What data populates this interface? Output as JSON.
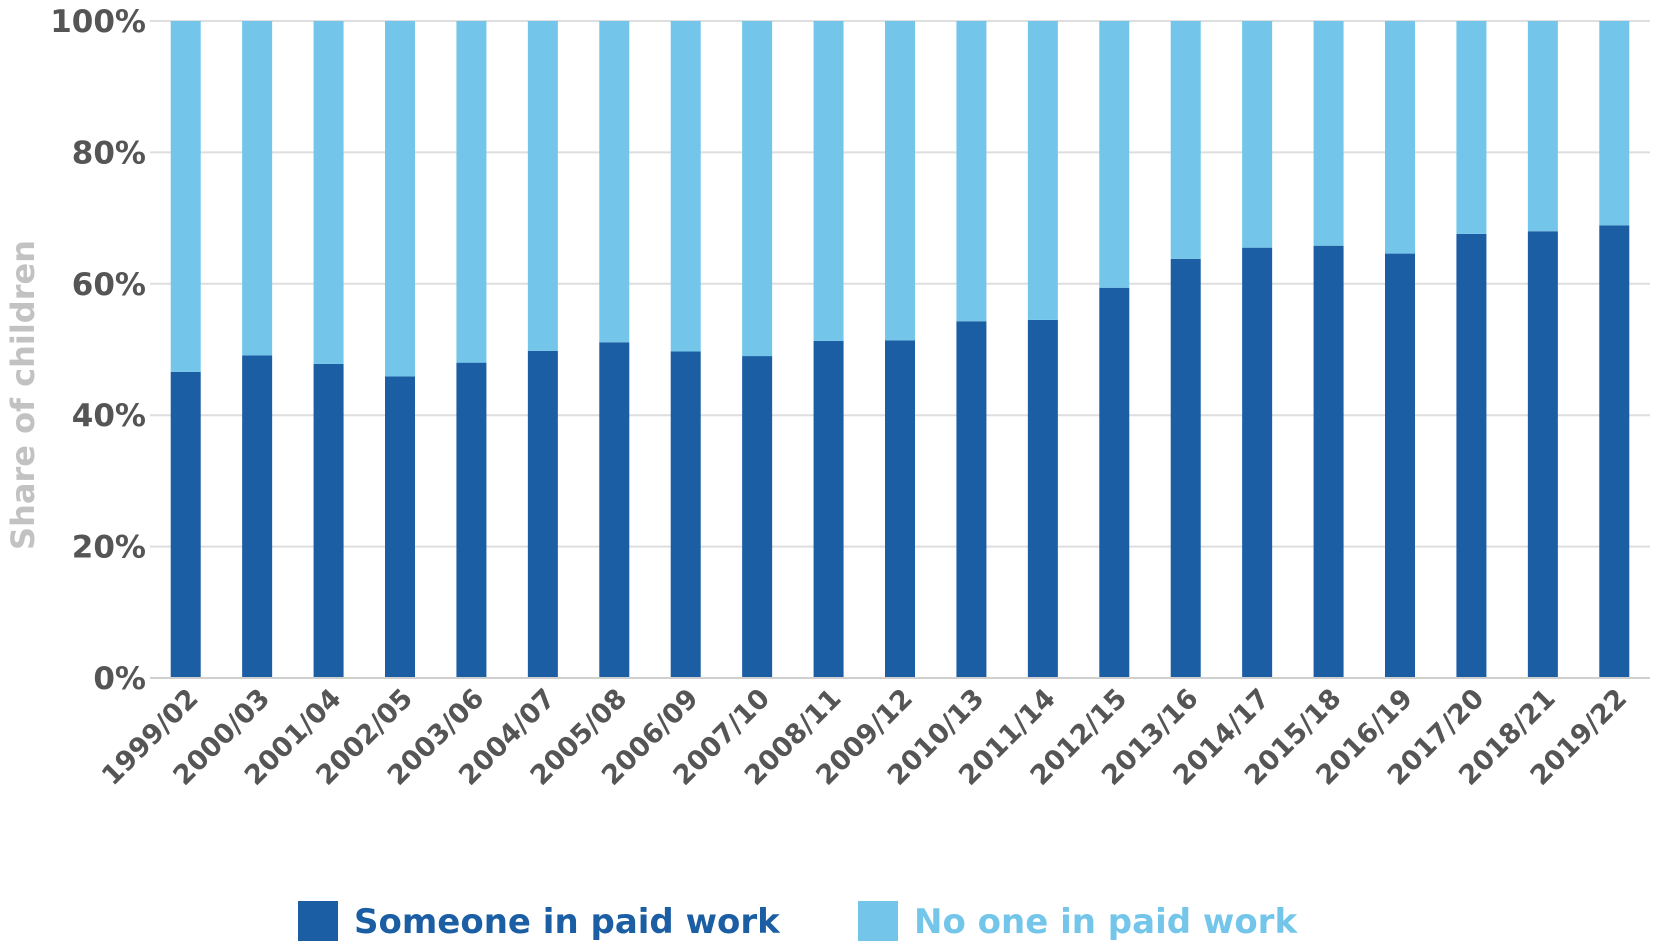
{
  "chart_data": {
    "type": "bar",
    "stacked": true,
    "title": "",
    "xlabel": "",
    "ylabel": "Share of children",
    "ylim": [
      0,
      100
    ],
    "yticks": [
      "0%",
      "20%",
      "40%",
      "60%",
      "80%",
      "100%"
    ],
    "grid": true,
    "legend_position": "bottom",
    "categories": [
      "1999/02",
      "2000/03",
      "2001/04",
      "2002/05",
      "2003/06",
      "2004/07",
      "2005/08",
      "2006/09",
      "2007/10",
      "2008/11",
      "2009/12",
      "2010/13",
      "2011/14",
      "2012/15",
      "2013/16",
      "2014/17",
      "2015/18",
      "2016/19",
      "2017/20",
      "2018/21",
      "2019/22"
    ],
    "series": [
      {
        "name": "Someone in paid work",
        "color": "#1b5ea3",
        "values": [
          46.6,
          49.1,
          47.8,
          45.9,
          48.0,
          49.8,
          51.1,
          49.7,
          49.0,
          51.3,
          51.4,
          54.3,
          54.5,
          59.4,
          63.8,
          65.5,
          65.8,
          64.6,
          67.6,
          68.0,
          68.9
        ]
      },
      {
        "name": "No one in paid work",
        "color": "#73c6ea",
        "values": [
          53.4,
          50.9,
          52.2,
          54.1,
          52.0,
          50.2,
          48.9,
          50.3,
          51.0,
          48.7,
          48.6,
          45.7,
          45.5,
          40.6,
          36.2,
          34.5,
          34.2,
          35.4,
          32.4,
          32.0,
          31.1
        ]
      }
    ]
  }
}
